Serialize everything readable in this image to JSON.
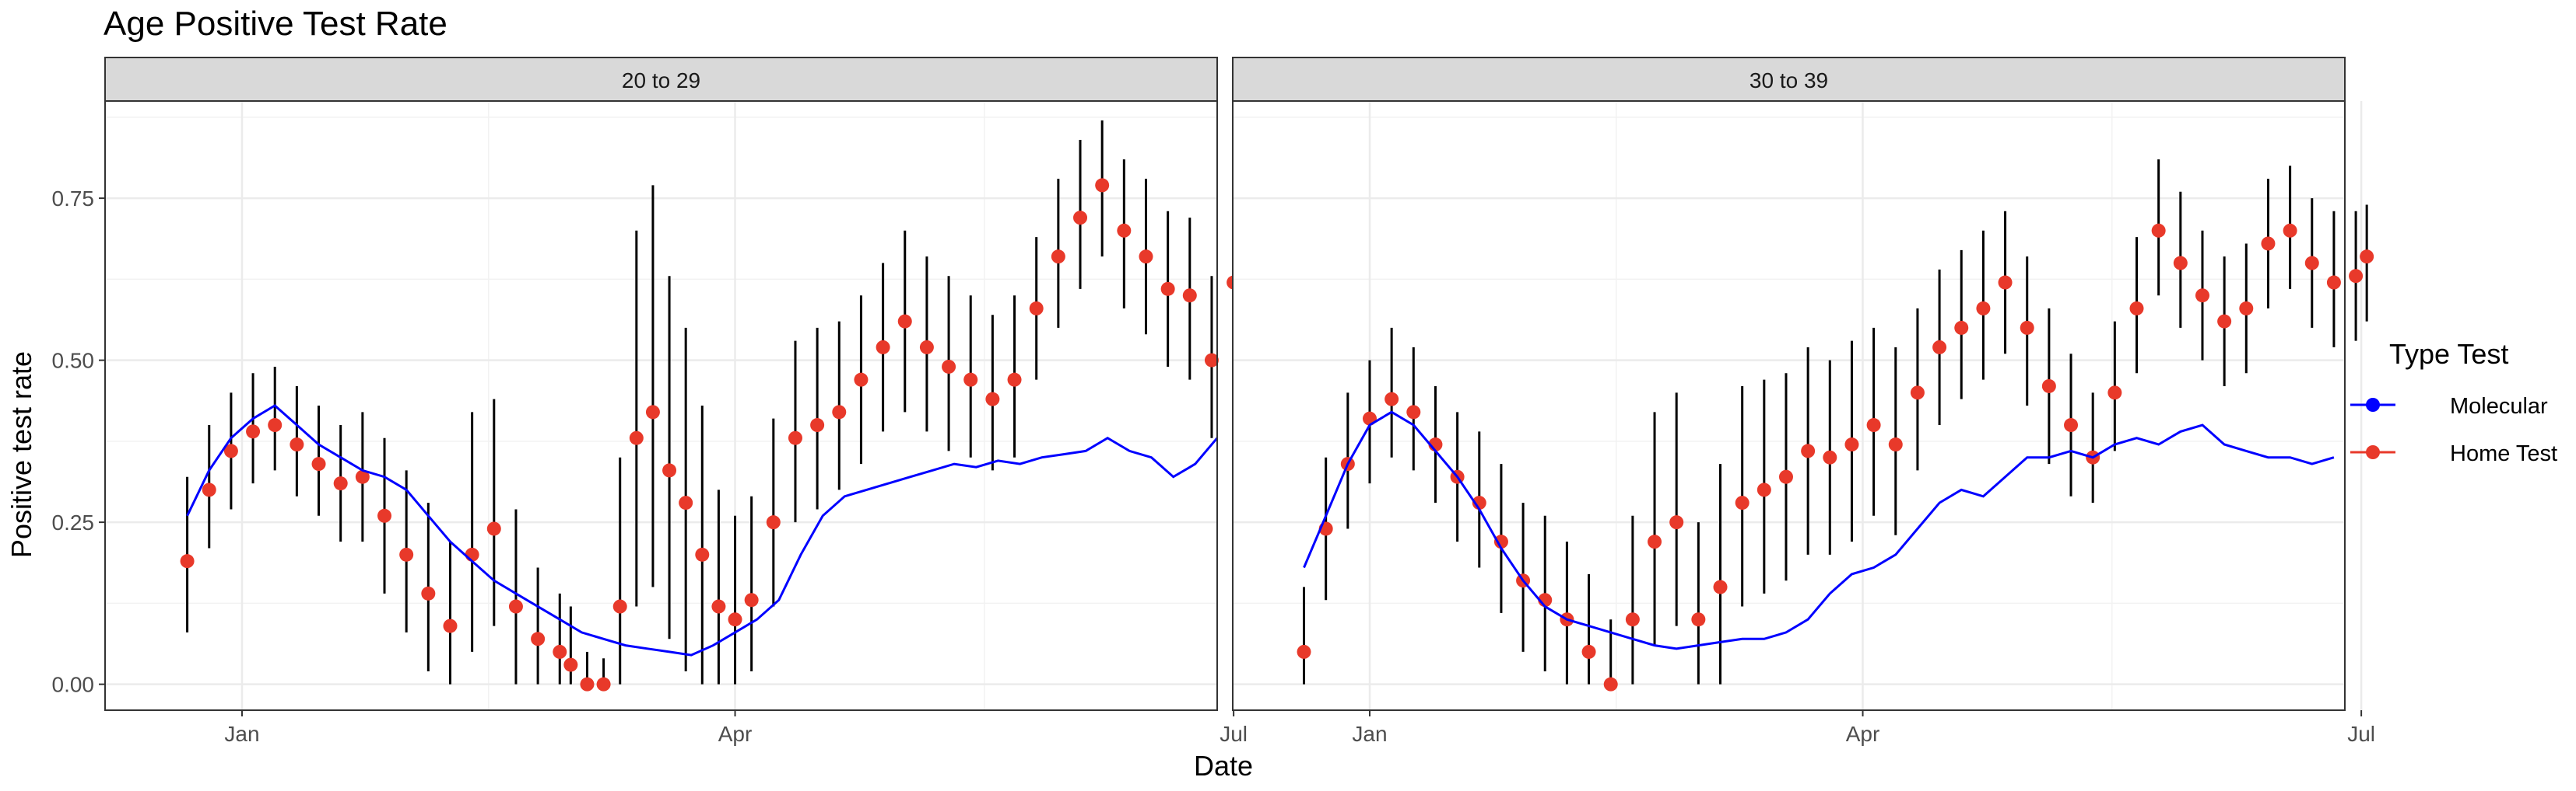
{
  "chart_data": {
    "type": "line",
    "title": "Age Positive Test Rate",
    "xlabel": "Date",
    "ylabel": "Positive test rate",
    "y_ticks": [
      "0.00",
      "0.25",
      "0.50",
      "0.75"
    ],
    "x_ticks": [
      "Jan",
      "Apr",
      "Jul"
    ],
    "ylim": [
      -0.04,
      0.9
    ],
    "xlim_days": [
      -10,
      193
    ],
    "x_tick_days": [
      15,
      105,
      196
    ],
    "grid": true,
    "legend": {
      "title": "Type Test",
      "position": "right",
      "entries": [
        {
          "name": "Molecular",
          "color": "#0000ff"
        },
        {
          "name": "Home Test",
          "color": "#e8392a"
        }
      ]
    },
    "panels": [
      {
        "label": "20 to 29",
        "series": [
          {
            "name": "Molecular",
            "color": "#0000ff",
            "kind": "line",
            "x": [
              "2021-12-22",
              "2021-12-26",
              "2021-12-30",
              "2022-01-03",
              "2022-01-07",
              "2022-01-11",
              "2022-01-15",
              "2022-01-19",
              "2022-01-23",
              "2022-01-27",
              "2022-01-31",
              "2022-02-04",
              "2022-02-08",
              "2022-02-12",
              "2022-02-16",
              "2022-02-20",
              "2022-02-24",
              "2022-02-28",
              "2022-03-04",
              "2022-03-08",
              "2022-03-12",
              "2022-03-16",
              "2022-03-20",
              "2022-03-24",
              "2022-03-28",
              "2022-04-01",
              "2022-04-05",
              "2022-04-09",
              "2022-04-13",
              "2022-04-17",
              "2022-04-21",
              "2022-04-25",
              "2022-04-29",
              "2022-05-03",
              "2022-05-07",
              "2022-05-11",
              "2022-05-15",
              "2022-05-19",
              "2022-05-23",
              "2022-05-27",
              "2022-05-31",
              "2022-06-04",
              "2022-06-08",
              "2022-06-12",
              "2022-06-16",
              "2022-06-20",
              "2022-06-24",
              "2022-06-28"
            ],
            "y": [
              0.26,
              0.33,
              0.38,
              0.41,
              0.43,
              0.4,
              0.37,
              0.35,
              0.33,
              0.32,
              0.3,
              0.26,
              0.22,
              0.19,
              0.16,
              0.14,
              0.12,
              0.1,
              0.08,
              0.07,
              0.06,
              0.055,
              0.05,
              0.045,
              0.06,
              0.08,
              0.1,
              0.13,
              0.2,
              0.26,
              0.29,
              0.3,
              0.31,
              0.32,
              0.33,
              0.34,
              0.335,
              0.345,
              0.34,
              0.35,
              0.355,
              0.36,
              0.38,
              0.36,
              0.35,
              0.32,
              0.34,
              0.38
            ]
          },
          {
            "name": "Home Test",
            "color": "#e8392a",
            "kind": "point_errorbar",
            "x": [
              "2021-12-22",
              "2021-12-26",
              "2021-12-30",
              "2022-01-03",
              "2022-01-07",
              "2022-01-11",
              "2022-01-15",
              "2022-01-19",
              "2022-01-23",
              "2022-01-27",
              "2022-01-31",
              "2022-02-04",
              "2022-02-08",
              "2022-02-12",
              "2022-02-16",
              "2022-02-20",
              "2022-02-24",
              "2022-02-28",
              "2022-03-02",
              "2022-03-05",
              "2022-03-08",
              "2022-03-11",
              "2022-03-14",
              "2022-03-17",
              "2022-03-20",
              "2022-03-23",
              "2022-03-26",
              "2022-03-29",
              "2022-04-01",
              "2022-04-04",
              "2022-04-08",
              "2022-04-12",
              "2022-04-16",
              "2022-04-20",
              "2022-04-24",
              "2022-04-28",
              "2022-05-02",
              "2022-05-06",
              "2022-05-10",
              "2022-05-14",
              "2022-05-18",
              "2022-05-22",
              "2022-05-26",
              "2022-05-30",
              "2022-06-03",
              "2022-06-07",
              "2022-06-11",
              "2022-06-15",
              "2022-06-19",
              "2022-06-23",
              "2022-06-27",
              "2022-07-01"
            ],
            "y": [
              0.19,
              0.3,
              0.36,
              0.39,
              0.4,
              0.37,
              0.34,
              0.31,
              0.32,
              0.26,
              0.2,
              0.14,
              0.09,
              0.2,
              0.24,
              0.12,
              0.07,
              0.05,
              0.03,
              0.0,
              0.0,
              0.12,
              0.38,
              0.42,
              0.33,
              0.28,
              0.2,
              0.12,
              0.1,
              0.13,
              0.25,
              0.38,
              0.4,
              0.42,
              0.47,
              0.52,
              0.56,
              0.52,
              0.49,
              0.47,
              0.44,
              0.47,
              0.58,
              0.66,
              0.72,
              0.77,
              0.7,
              0.66,
              0.61,
              0.6,
              0.5,
              0.62
            ],
            "lower": [
              0.08,
              0.21,
              0.27,
              0.31,
              0.33,
              0.29,
              0.26,
              0.22,
              0.22,
              0.14,
              0.08,
              0.02,
              0.0,
              0.05,
              0.09,
              0.0,
              0.0,
              0.0,
              0.0,
              0.0,
              0.0,
              0.0,
              0.12,
              0.15,
              0.07,
              0.02,
              0.0,
              0.0,
              0.0,
              0.02,
              0.12,
              0.25,
              0.27,
              0.3,
              0.34,
              0.39,
              0.42,
              0.39,
              0.36,
              0.35,
              0.33,
              0.35,
              0.47,
              0.55,
              0.61,
              0.66,
              0.58,
              0.54,
              0.49,
              0.47,
              0.38,
              0.5
            ],
            "upper": [
              0.32,
              0.4,
              0.45,
              0.48,
              0.49,
              0.46,
              0.43,
              0.4,
              0.42,
              0.38,
              0.33,
              0.28,
              0.22,
              0.42,
              0.44,
              0.27,
              0.18,
              0.14,
              0.12,
              0.05,
              0.04,
              0.35,
              0.7,
              0.77,
              0.63,
              0.55,
              0.43,
              0.3,
              0.26,
              0.29,
              0.41,
              0.53,
              0.55,
              0.56,
              0.6,
              0.65,
              0.7,
              0.66,
              0.63,
              0.6,
              0.57,
              0.6,
              0.69,
              0.78,
              0.84,
              0.87,
              0.81,
              0.78,
              0.73,
              0.72,
              0.63,
              0.75
            ]
          }
        ]
      },
      {
        "label": "30 to 39",
        "series": [
          {
            "name": "Molecular",
            "color": "#0000ff",
            "kind": "line",
            "x": [
              "2021-12-20",
              "2021-12-24",
              "2021-12-28",
              "2022-01-01",
              "2022-01-05",
              "2022-01-09",
              "2022-01-13",
              "2022-01-17",
              "2022-01-21",
              "2022-01-25",
              "2022-01-29",
              "2022-02-02",
              "2022-02-06",
              "2022-02-10",
              "2022-02-14",
              "2022-02-18",
              "2022-02-22",
              "2022-02-26",
              "2022-03-02",
              "2022-03-06",
              "2022-03-10",
              "2022-03-14",
              "2022-03-18",
              "2022-03-22",
              "2022-03-26",
              "2022-03-30",
              "2022-04-03",
              "2022-04-07",
              "2022-04-11",
              "2022-04-15",
              "2022-04-19",
              "2022-04-23",
              "2022-04-27",
              "2022-05-01",
              "2022-05-05",
              "2022-05-09",
              "2022-05-13",
              "2022-05-17",
              "2022-05-21",
              "2022-05-25",
              "2022-05-29",
              "2022-06-02",
              "2022-06-06",
              "2022-06-10",
              "2022-06-14",
              "2022-06-18",
              "2022-06-22",
              "2022-06-26"
            ],
            "y": [
              0.18,
              0.26,
              0.34,
              0.4,
              0.42,
              0.4,
              0.36,
              0.32,
              0.27,
              0.21,
              0.16,
              0.12,
              0.1,
              0.09,
              0.08,
              0.07,
              0.06,
              0.055,
              0.06,
              0.065,
              0.07,
              0.07,
              0.08,
              0.1,
              0.14,
              0.17,
              0.18,
              0.2,
              0.24,
              0.28,
              0.3,
              0.29,
              0.32,
              0.35,
              0.35,
              0.36,
              0.35,
              0.37,
              0.38,
              0.37,
              0.39,
              0.4,
              0.37,
              0.36,
              0.35,
              0.35,
              0.34,
              0.35
            ]
          },
          {
            "name": "Home Test",
            "color": "#e8392a",
            "kind": "point_errorbar",
            "x": [
              "2021-12-20",
              "2021-12-24",
              "2021-12-28",
              "2022-01-01",
              "2022-01-05",
              "2022-01-09",
              "2022-01-13",
              "2022-01-17",
              "2022-01-21",
              "2022-01-25",
              "2022-01-29",
              "2022-02-02",
              "2022-02-06",
              "2022-02-10",
              "2022-02-14",
              "2022-02-18",
              "2022-02-22",
              "2022-02-26",
              "2022-03-02",
              "2022-03-06",
              "2022-03-10",
              "2022-03-14",
              "2022-03-18",
              "2022-03-22",
              "2022-03-26",
              "2022-03-30",
              "2022-04-03",
              "2022-04-07",
              "2022-04-11",
              "2022-04-15",
              "2022-04-19",
              "2022-04-23",
              "2022-04-27",
              "2022-05-01",
              "2022-05-05",
              "2022-05-09",
              "2022-05-13",
              "2022-05-17",
              "2022-05-21",
              "2022-05-25",
              "2022-05-29",
              "2022-06-02",
              "2022-06-06",
              "2022-06-10",
              "2022-06-14",
              "2022-06-18",
              "2022-06-22",
              "2022-06-26",
              "2022-06-30",
              "2022-07-02"
            ],
            "y": [
              0.05,
              0.24,
              0.34,
              0.41,
              0.44,
              0.42,
              0.37,
              0.32,
              0.28,
              0.22,
              0.16,
              0.13,
              0.1,
              0.05,
              0.0,
              0.1,
              0.22,
              0.25,
              0.1,
              0.15,
              0.28,
              0.3,
              0.32,
              0.36,
              0.35,
              0.37,
              0.4,
              0.37,
              0.45,
              0.52,
              0.55,
              0.58,
              0.62,
              0.55,
              0.46,
              0.4,
              0.35,
              0.45,
              0.58,
              0.7,
              0.65,
              0.6,
              0.56,
              0.58,
              0.68,
              0.7,
              0.65,
              0.62,
              0.63,
              0.66
            ],
            "lower": [
              0.0,
              0.13,
              0.24,
              0.31,
              0.35,
              0.33,
              0.28,
              0.22,
              0.18,
              0.11,
              0.05,
              0.02,
              0.0,
              0.0,
              0.0,
              0.0,
              0.06,
              0.09,
              0.0,
              0.0,
              0.12,
              0.14,
              0.16,
              0.2,
              0.2,
              0.22,
              0.26,
              0.23,
              0.33,
              0.4,
              0.44,
              0.47,
              0.51,
              0.43,
              0.34,
              0.29,
              0.28,
              0.36,
              0.48,
              0.6,
              0.55,
              0.5,
              0.46,
              0.48,
              0.58,
              0.61,
              0.55,
              0.52,
              0.53,
              0.56
            ],
            "upper": [
              0.15,
              0.35,
              0.45,
              0.5,
              0.55,
              0.52,
              0.46,
              0.42,
              0.39,
              0.34,
              0.28,
              0.26,
              0.22,
              0.17,
              0.1,
              0.26,
              0.42,
              0.45,
              0.25,
              0.34,
              0.46,
              0.47,
              0.48,
              0.52,
              0.5,
              0.53,
              0.55,
              0.52,
              0.58,
              0.64,
              0.67,
              0.7,
              0.73,
              0.66,
              0.58,
              0.51,
              0.45,
              0.56,
              0.69,
              0.81,
              0.76,
              0.7,
              0.66,
              0.68,
              0.78,
              0.8,
              0.75,
              0.73,
              0.73,
              0.74
            ]
          }
        ]
      }
    ]
  }
}
